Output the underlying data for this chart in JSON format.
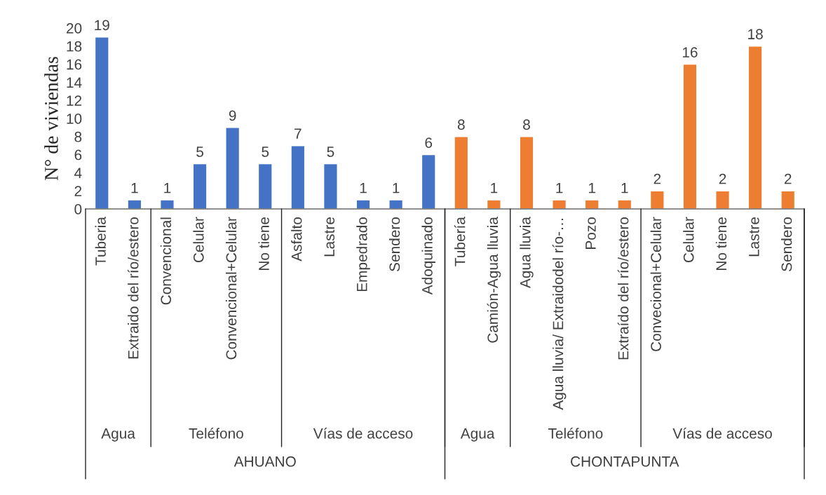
{
  "chart_data": {
    "type": "bar",
    "ylabel": "N° de viviendas",
    "categories": [
      "Tuberia",
      "Extraido del río/estero",
      "Convencional",
      "Celular",
      "Convencional+Celular",
      "No tiene",
      "Asfalto",
      "Lastre",
      "Empedrado",
      "Sendero",
      "Adoquinado",
      "Tubería",
      "Camión-Agua lluvia",
      "Agua lluvia",
      "Agua lluvia/ Extraidodel río-…",
      "Pozo",
      "Extraído del río/estero",
      "Convecional+Celular",
      "Celular",
      "No tiene",
      "Lastre",
      "Sendero"
    ],
    "values": [
      19,
      1,
      1,
      5,
      9,
      5,
      7,
      5,
      1,
      1,
      6,
      8,
      1,
      8,
      1,
      1,
      1,
      2,
      16,
      2,
      18,
      2
    ],
    "colors": [
      "#4472c4",
      "#4472c4",
      "#4472c4",
      "#4472c4",
      "#4472c4",
      "#4472c4",
      "#4472c4",
      "#4472c4",
      "#4472c4",
      "#4472c4",
      "#4472c4",
      "#ed7d31",
      "#ed7d31",
      "#ed7d31",
      "#ed7d31",
      "#ed7d31",
      "#ed7d31",
      "#ed7d31",
      "#ed7d31",
      "#ed7d31",
      "#ed7d31",
      "#ed7d31"
    ],
    "ylim": [
      0,
      20
    ],
    "yticks": [
      0,
      2,
      4,
      6,
      8,
      10,
      12,
      14,
      16,
      18,
      20
    ],
    "data_labels": true,
    "grid": false,
    "legend": false,
    "annotations": [
      "Agua",
      "Teléfono",
      "Vías de acceso",
      "Agua",
      "Teléfono",
      "Vías de acceso",
      "AHUANO",
      "CHONTAPUNTA"
    ]
  }
}
